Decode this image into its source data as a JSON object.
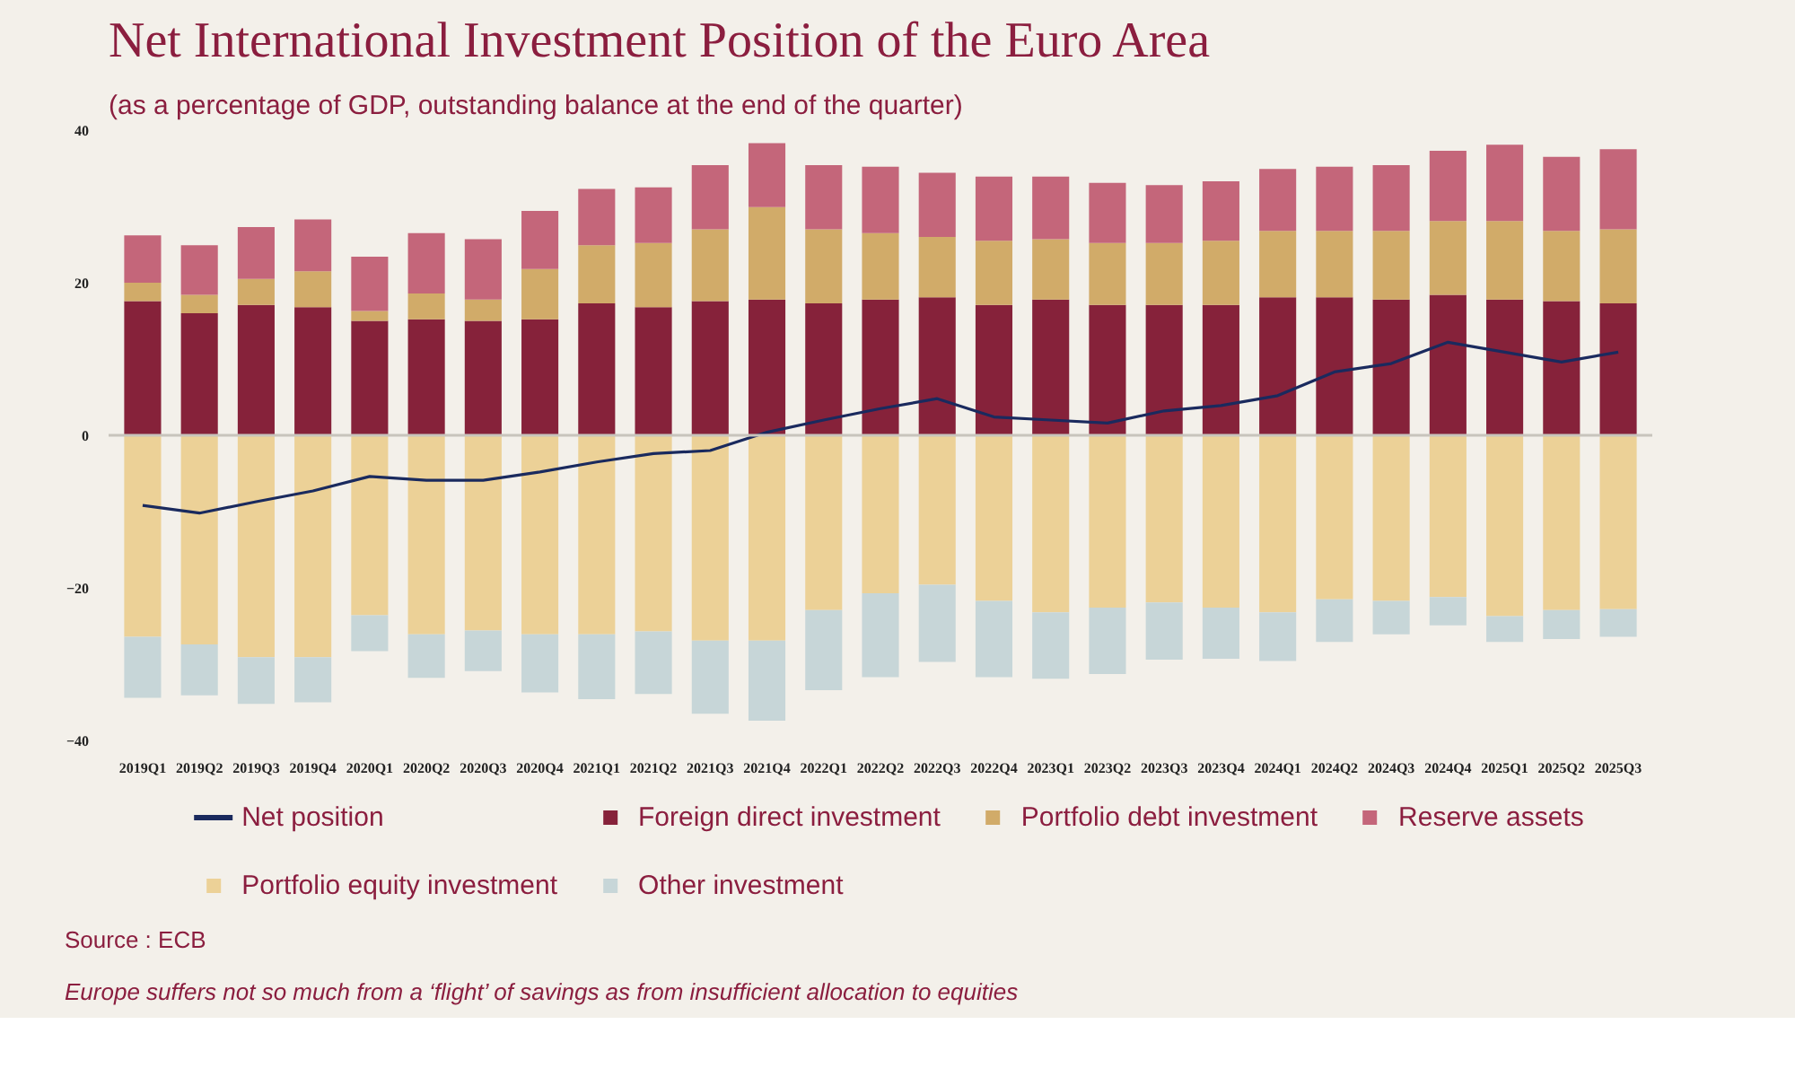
{
  "chart_data": {
    "type": "bar",
    "stacked": true,
    "title": "Net International Investment Position of the Euro Area",
    "subtitle": "(as a percentage of GDP, outstanding balance at the end of the quarter)",
    "categories": [
      "2019Q1",
      "2019Q2",
      "2019Q3",
      "2019Q4",
      "2020Q1",
      "2020Q2",
      "2020Q3",
      "2020Q4",
      "2021Q1",
      "2021Q2",
      "2021Q3",
      "2021Q4",
      "2022Q1",
      "2022Q2",
      "2022Q3",
      "2022Q4",
      "2023Q1",
      "2023Q2",
      "2023Q3",
      "2023Q4",
      "2024Q1",
      "2024Q2",
      "2024Q3",
      "2024Q4",
      "2025Q1",
      "2025Q2",
      "2025Q3"
    ],
    "series": [
      {
        "name": "Net position",
        "type": "line",
        "color": "#1a2a5e",
        "values": [
          -9.2,
          -10.2,
          -8.7,
          -7.3,
          -5.4,
          -5.9,
          -5.9,
          -4.8,
          -3.5,
          -2.4,
          -2.0,
          0.4,
          2.0,
          3.5,
          4.8,
          2.4,
          2.0,
          1.6,
          3.2,
          3.9,
          5.2,
          8.3,
          9.4,
          12.2,
          10.9,
          9.6,
          10.9
        ]
      },
      {
        "name": "Foreign direct investment",
        "color": "#86223a",
        "values": [
          17.6,
          16.0,
          17.1,
          16.8,
          15.0,
          15.2,
          15.0,
          15.2,
          17.3,
          16.8,
          17.6,
          17.8,
          17.3,
          17.8,
          18.1,
          17.1,
          17.8,
          17.1,
          17.1,
          17.1,
          18.1,
          18.1,
          17.8,
          18.4,
          17.8,
          17.6,
          17.3
        ]
      },
      {
        "name": "Portfolio debt investment",
        "color": "#d1ab69",
        "values": [
          2.4,
          2.4,
          3.4,
          4.7,
          1.3,
          3.4,
          2.8,
          6.6,
          7.6,
          8.4,
          9.4,
          12.1,
          9.7,
          8.7,
          7.9,
          8.4,
          7.9,
          8.1,
          8.1,
          8.4,
          8.7,
          8.7,
          9.0,
          9.7,
          10.3,
          9.2,
          9.7
        ]
      },
      {
        "name": "Reserve assets",
        "color": "#c4667a",
        "values": [
          6.2,
          6.5,
          6.8,
          6.8,
          7.1,
          7.9,
          7.9,
          7.6,
          7.4,
          7.3,
          8.4,
          8.4,
          8.4,
          8.7,
          8.4,
          8.4,
          8.2,
          7.9,
          7.6,
          7.8,
          8.1,
          8.4,
          8.6,
          9.2,
          10.0,
          9.7,
          10.5
        ]
      },
      {
        "name": "Portfolio equity investment",
        "color": "#ecd197",
        "values": [
          -26.4,
          -27.4,
          -29.1,
          -29.1,
          -23.6,
          -26.1,
          -25.6,
          -26.1,
          -26.1,
          -25.7,
          -26.9,
          -26.9,
          -22.9,
          -20.7,
          -19.6,
          -21.7,
          -23.2,
          -22.6,
          -21.9,
          -22.6,
          -23.2,
          -21.5,
          -21.7,
          -21.2,
          -23.7,
          -22.9,
          -22.8
        ]
      },
      {
        "name": "Other investment",
        "color": "#c7d6d8",
        "values": [
          -8.0,
          -6.7,
          -6.1,
          -5.9,
          -4.7,
          -5.7,
          -5.3,
          -7.6,
          -8.5,
          -8.2,
          -9.6,
          -10.5,
          -10.5,
          -11.0,
          -10.1,
          -10.0,
          -8.7,
          -8.7,
          -7.5,
          -6.7,
          -6.4,
          -5.6,
          -4.4,
          -3.7,
          -3.4,
          -3.8,
          -3.6
        ]
      }
    ],
    "ylim": [
      -40,
      40
    ],
    "yticks": [
      -40,
      -20,
      0,
      20,
      40
    ],
    "ref_lines": [
      {
        "axis": "y",
        "value": 0,
        "color": "#c8c4bc"
      }
    ],
    "grid": false,
    "legend": "bottom",
    "annotations": [
      "Source : ECB",
      "Europe suffers not so much from a ‘flight’ of savings as from insufficient allocation to equities"
    ]
  }
}
